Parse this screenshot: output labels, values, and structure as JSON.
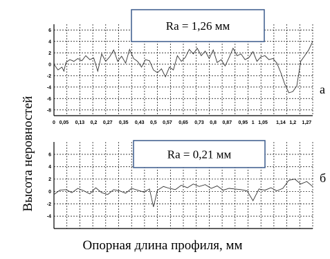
{
  "figure": {
    "y_axis_label": "Высота неровностей",
    "x_axis_label": "Опорная длина профиля, мм"
  },
  "chart_data": [
    {
      "type": "line",
      "panel_letter": "а",
      "annotation": "Ra = 1,26 мм",
      "ylim": [
        -9,
        7
      ],
      "yticks": [
        6,
        4,
        2,
        0,
        -2,
        -4,
        -6,
        -8
      ],
      "xlim": [
        0,
        1.3
      ],
      "xtick_labels": [
        "0",
        "0,05",
        "0,13",
        "0,2",
        "0,27",
        "0,35",
        "0,43",
        "0,5",
        "0,57",
        "0,65",
        "0,73",
        "0,8",
        "0,87",
        "0,95",
        "1",
        "1,05",
        "1,14",
        "1,2",
        "1,27"
      ],
      "xtick_values": [
        0,
        0.05,
        0.13,
        0.2,
        0.27,
        0.35,
        0.43,
        0.5,
        0.57,
        0.65,
        0.73,
        0.8,
        0.87,
        0.95,
        1.0,
        1.05,
        1.14,
        1.2,
        1.27
      ],
      "grid": true,
      "series": [
        {
          "color": "#333333",
          "x": [
            0,
            0.02,
            0.04,
            0.05,
            0.06,
            0.08,
            0.1,
            0.12,
            0.14,
            0.16,
            0.18,
            0.2,
            0.22,
            0.24,
            0.26,
            0.28,
            0.3,
            0.32,
            0.34,
            0.36,
            0.38,
            0.4,
            0.42,
            0.44,
            0.46,
            0.48,
            0.5,
            0.52,
            0.54,
            0.56,
            0.58,
            0.6,
            0.62,
            0.64,
            0.66,
            0.68,
            0.7,
            0.72,
            0.74,
            0.76,
            0.78,
            0.8,
            0.82,
            0.84,
            0.86,
            0.88,
            0.9,
            0.92,
            0.94,
            0.96,
            0.98,
            1.0,
            1.02,
            1.04,
            1.06,
            1.08,
            1.1,
            1.12,
            1.14,
            1.16,
            1.18,
            1.2,
            1.22,
            1.24,
            1.26,
            1.28,
            1.3
          ],
          "y": [
            0,
            -1,
            -0.5,
            -1.2,
            0.3,
            0.8,
            0.5,
            1.0,
            0.6,
            1.5,
            0.8,
            1.1,
            -1.2,
            1.8,
            0.5,
            1.3,
            2.5,
            0.5,
            1.4,
            0.2,
            2.6,
            1.0,
            0.5,
            -0.5,
            0.8,
            0.6,
            -1.0,
            -1.5,
            -0.8,
            -2.2,
            -0.5,
            -1.0,
            1.5,
            0.5,
            1.2,
            2.6,
            1.8,
            2.8,
            1.5,
            2.3,
            1.0,
            2.5,
            0.3,
            0.8,
            -0.3,
            1.2,
            2.8,
            1.5,
            1.8,
            0.8,
            1.2,
            2.2,
            0.5,
            1.3,
            1.5,
            0.8,
            1.0,
            0.2,
            -1.5,
            -3.5,
            -5.0,
            -4.8,
            -3.8,
            0.5,
            1.5,
            2.5,
            4.0
          ]
        }
      ]
    },
    {
      "type": "line",
      "panel_letter": "б",
      "annotation": "Ra = 0,21 мм",
      "ylim": [
        -6,
        8
      ],
      "yticks": [
        6,
        4,
        2,
        0,
        -2,
        -4
      ],
      "xlim": [
        0,
        1.3
      ],
      "grid": true,
      "series": [
        {
          "color": "#333333",
          "x": [
            0,
            0.03,
            0.06,
            0.09,
            0.12,
            0.15,
            0.18,
            0.21,
            0.24,
            0.27,
            0.3,
            0.33,
            0.36,
            0.39,
            0.42,
            0.45,
            0.48,
            0.5,
            0.52,
            0.55,
            0.58,
            0.61,
            0.64,
            0.67,
            0.7,
            0.73,
            0.76,
            0.79,
            0.82,
            0.85,
            0.88,
            0.91,
            0.94,
            0.97,
            1.0,
            1.03,
            1.06,
            1.09,
            1.12,
            1.15,
            1.18,
            1.21,
            1.24,
            1.27,
            1.3
          ],
          "y": [
            -0.5,
            0.2,
            0.3,
            -0.2,
            0.5,
            0.1,
            -0.4,
            0.6,
            -0.2,
            -0.5,
            0.3,
            0.1,
            -0.3,
            0.5,
            0.2,
            -0.1,
            0.4,
            -2.5,
            0.2,
            0.8,
            0.5,
            0.3,
            1.0,
            0.6,
            1.2,
            0.8,
            1.1,
            0.5,
            0.9,
            0.2,
            0.5,
            0.4,
            0.3,
            0.1,
            -1.5,
            0.4,
            0.2,
            0.6,
            0.1,
            0.5,
            1.8,
            2.0,
            1.2,
            1.6,
            0.8
          ]
        }
      ]
    }
  ]
}
